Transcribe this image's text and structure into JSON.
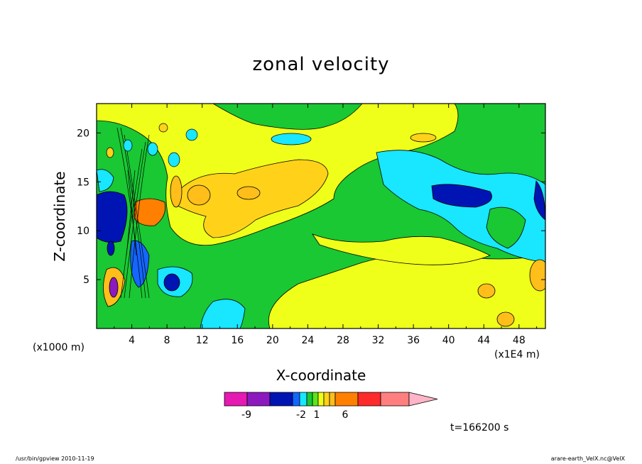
{
  "chart_data": {
    "type": "heatmap",
    "title": "zonal velocity",
    "xlabel": "X-coordinate",
    "ylabel": "Z-coordinate",
    "x_unit_label": "(x1000 m)",
    "x_scale_label": "(x1E4 m)",
    "x_ticks": [
      "4",
      "8",
      "12",
      "16",
      "20",
      "24",
      "28",
      "32",
      "36",
      "40",
      "44",
      "48"
    ],
    "y_ticks": [
      "5",
      "10",
      "15",
      "20"
    ],
    "xlim": [
      0,
      51
    ],
    "ylim": [
      0,
      23
    ],
    "colorbar": {
      "labels": [
        {
          "text": "-9",
          "value": -9
        },
        {
          "text": "-2",
          "value": -2
        },
        {
          "text": "1",
          "value": 1
        },
        {
          "text": "6",
          "value": 6
        }
      ],
      "colors": [
        "#e619b3",
        "#8c19bf",
        "#0014b3",
        "#1466ff",
        "#19e6ff",
        "#19c833",
        "#5ae619",
        "#f0ff19",
        "#ffd219",
        "#ffbe19",
        "#ff7f00",
        "#ff2a2a",
        "#ff7f7f",
        "#ffb4c8"
      ]
    },
    "annotation": "t=166200 s"
  },
  "footer": {
    "left": "/usr/bin/gpview   2010-11-19",
    "right": "arare-earth_VelX.nc@VelX"
  }
}
